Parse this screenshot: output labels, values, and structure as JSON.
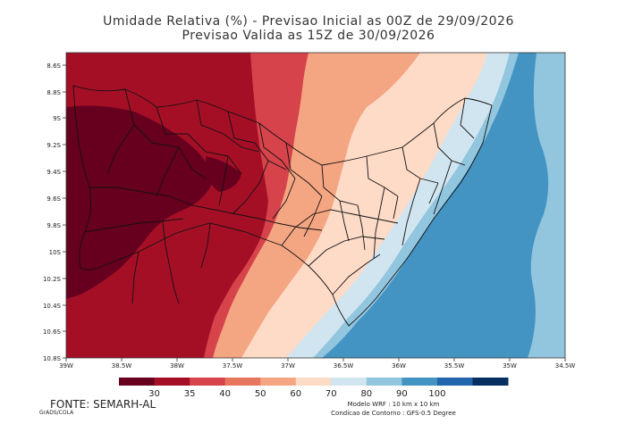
{
  "title_line1": "Umidade Relativa (%) - Previsao Inicial as 00Z de 29/09/2026",
  "title_line2": "Previsao Valida as 15Z de 30/09/2026",
  "lat_ticks": [
    "8.6S",
    "8.8S",
    "9S",
    "9.2S",
    "9.4S",
    "9.6S",
    "9.8S",
    "10S",
    "10.2S",
    "10.4S",
    "10.6S",
    "10.8S"
  ],
  "lon_ticks": [
    "39W",
    "38.5W",
    "38W",
    "37.5W",
    "37W",
    "36.5W",
    "36W",
    "35.5W",
    "35W",
    "34.5W"
  ],
  "colorbar": {
    "levels": [
      "30",
      "35",
      "40",
      "50",
      "60",
      "70",
      "80",
      "90",
      "100"
    ],
    "colors": [
      "#67001f",
      "#a50f26",
      "#d6434b",
      "#e8765d",
      "#f4a582",
      "#fddbc7",
      "#d1e5f0",
      "#92c5de",
      "#4393c3",
      "#2166ac",
      "#053061"
    ]
  },
  "footer": {
    "source": "FONTE: SEMARH-AL",
    "grads": "GrADS/COLA",
    "model": "Modelo WRF : 10 km x 10 km",
    "contour": "Condicao de Contorno : GFS-0.5 Degree"
  }
}
